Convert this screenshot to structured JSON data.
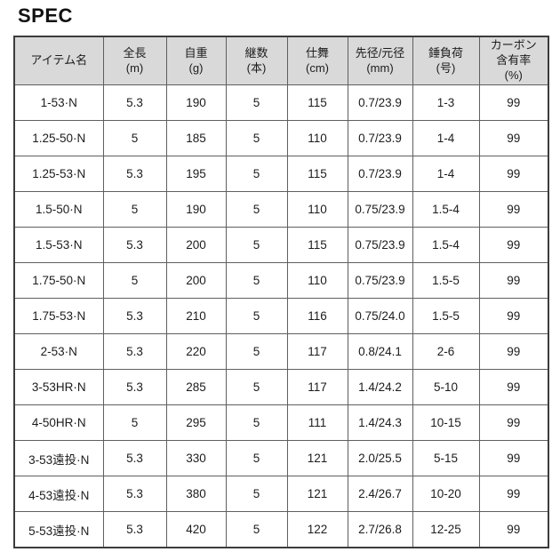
{
  "page": {
    "title": "SPEC"
  },
  "table": {
    "columns": [
      {
        "id": "item_name",
        "label": "アイテム名"
      },
      {
        "id": "total_length",
        "label": "全長\n(m)"
      },
      {
        "id": "weight",
        "label": "自重\n(g)"
      },
      {
        "id": "sections",
        "label": "継数\n(本)"
      },
      {
        "id": "closed_length",
        "label": "仕舞\n(cm)"
      },
      {
        "id": "tip_butt_dia",
        "label": "先径/元径\n(mm)"
      },
      {
        "id": "sinker_load",
        "label": "錘負荷\n(号)"
      },
      {
        "id": "carbon_content",
        "label": "カーボン\n含有率\n(%)"
      }
    ],
    "rows": [
      [
        "1-53·N",
        "5.3",
        "190",
        "5",
        "115",
        "0.7/23.9",
        "1-3",
        "99"
      ],
      [
        "1.25-50·N",
        "5",
        "185",
        "5",
        "110",
        "0.7/23.9",
        "1-4",
        "99"
      ],
      [
        "1.25-53·N",
        "5.3",
        "195",
        "5",
        "115",
        "0.7/23.9",
        "1-4",
        "99"
      ],
      [
        "1.5-50·N",
        "5",
        "190",
        "5",
        "110",
        "0.75/23.9",
        "1.5-4",
        "99"
      ],
      [
        "1.5-53·N",
        "5.3",
        "200",
        "5",
        "115",
        "0.75/23.9",
        "1.5-4",
        "99"
      ],
      [
        "1.75-50·N",
        "5",
        "200",
        "5",
        "110",
        "0.75/23.9",
        "1.5-5",
        "99"
      ],
      [
        "1.75-53·N",
        "5.3",
        "210",
        "5",
        "116",
        "0.75/24.0",
        "1.5-5",
        "99"
      ],
      [
        "2-53·N",
        "5.3",
        "220",
        "5",
        "117",
        "0.8/24.1",
        "2-6",
        "99"
      ],
      [
        "3-53HR·N",
        "5.3",
        "285",
        "5",
        "117",
        "1.4/24.2",
        "5-10",
        "99"
      ],
      [
        "4-50HR·N",
        "5",
        "295",
        "5",
        "111",
        "1.4/24.3",
        "10-15",
        "99"
      ],
      [
        "3-53遠投·N",
        "5.3",
        "330",
        "5",
        "121",
        "2.0/25.5",
        "5-15",
        "99"
      ],
      [
        "4-53遠投·N",
        "5.3",
        "380",
        "5",
        "121",
        "2.4/26.7",
        "10-20",
        "99"
      ],
      [
        "5-53遠投·N",
        "5.3",
        "420",
        "5",
        "122",
        "2.7/26.8",
        "12-25",
        "99"
      ]
    ]
  }
}
